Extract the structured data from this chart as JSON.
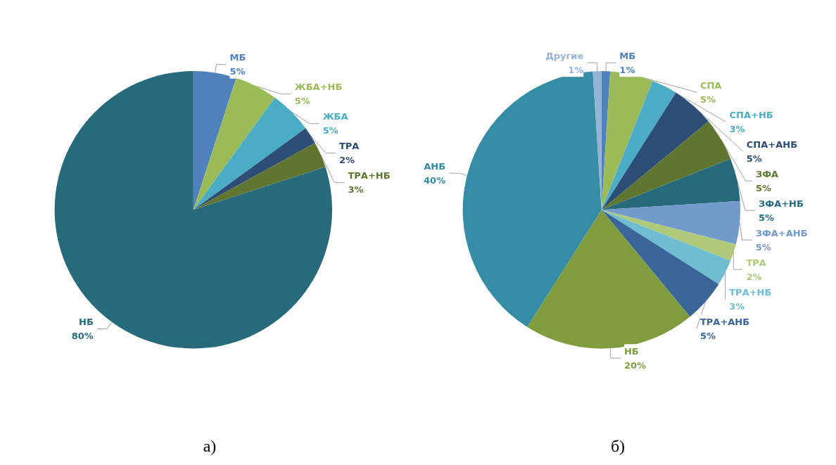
{
  "chart_data": [
    {
      "type": "pie",
      "title": "а)",
      "categories": [
        "МБ",
        "ЖБА+НБ",
        "ЖБА",
        "ТРА",
        "ТРА+НБ",
        "НБ"
      ],
      "values": [
        5,
        5,
        5,
        2,
        3,
        80
      ],
      "value_labels": [
        "5%",
        "5%",
        "5%",
        "2%",
        "3%",
        "80%"
      ],
      "colors": [
        "#4f81bd",
        "#9bbb59",
        "#4bacc6",
        "#2c4d75",
        "#5f7530",
        "#276a7c"
      ]
    },
    {
      "type": "pie",
      "title": "б)",
      "categories": [
        "МБ",
        "СПА",
        "СПА+НБ",
        "СПА+АНБ",
        "ЗФА",
        "ЗФА+НБ",
        "ЗФА+АНБ",
        "ТРА",
        "ТРА+НБ",
        "ТРА+АНБ",
        "НБ",
        "АНБ",
        "Другие"
      ],
      "values": [
        1,
        5,
        3,
        5,
        5,
        5,
        5,
        2,
        3,
        5,
        20,
        40,
        1
      ],
      "value_labels": [
        "1%",
        "5%",
        "3%",
        "5%",
        "5%",
        "5%",
        "5%",
        "2%",
        "3%",
        "5%",
        "20%",
        "40%",
        "1%"
      ],
      "colors": [
        "#4f81bd",
        "#9bbb59",
        "#4bacc6",
        "#2c4d75",
        "#5f7530",
        "#276a7c",
        "#729aca",
        "#afc97a",
        "#6fbdd1",
        "#3a6599",
        "#7f9c3f",
        "#358ca5",
        "#95b3d7"
      ]
    }
  ]
}
